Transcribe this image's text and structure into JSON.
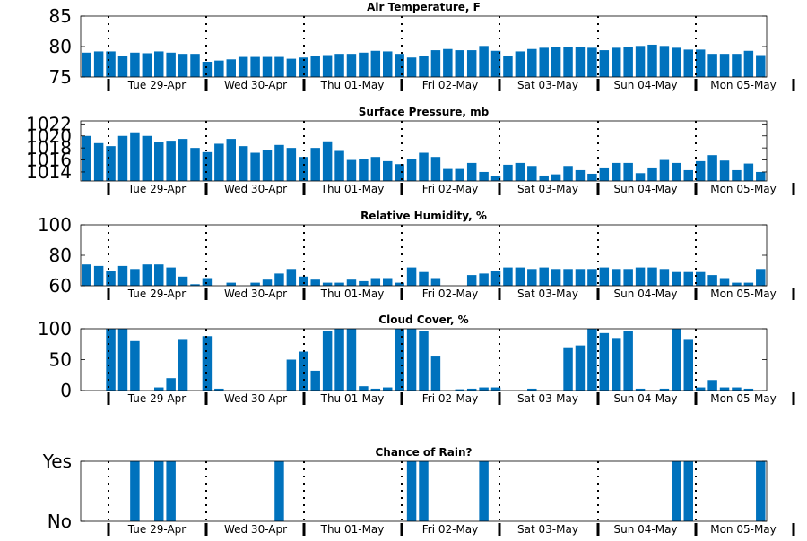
{
  "days": [
    "Tue 29-Apr",
    "Wed 30-Apr",
    "Thu 01-May",
    "Fri 02-May",
    "Sat 03-May",
    "Sun 04-May",
    "Mon 05-May"
  ],
  "colors": {
    "bar": "#0072BD",
    "axis": "#000000"
  },
  "chart_data": [
    {
      "type": "bar",
      "title": "Air Temperature, F",
      "ylim": [
        75,
        85
      ],
      "yticks": [
        "75",
        "80",
        "85"
      ],
      "ytick_values": [
        75,
        80,
        85
      ],
      "values": [
        79.0,
        79.2,
        79.2,
        78.4,
        79.0,
        78.9,
        79.2,
        79.0,
        78.8,
        78.8,
        77.5,
        77.7,
        77.9,
        78.3,
        78.3,
        78.3,
        78.3,
        78.0,
        78.2,
        78.4,
        78.6,
        78.8,
        78.8,
        79.0,
        79.3,
        79.2,
        78.8,
        78.2,
        78.4,
        79.4,
        79.6,
        79.4,
        79.4,
        80.1,
        79.3,
        78.5,
        79.2,
        79.6,
        79.8,
        80.0,
        80.0,
        80.0,
        79.8,
        79.4,
        79.8,
        80.0,
        80.1,
        80.3,
        80.1,
        79.8,
        79.5,
        79.5,
        78.8,
        78.8,
        78.8,
        79.3,
        78.6
      ],
      "grid": false
    },
    {
      "type": "bar",
      "title": "Surface Pressure, mb",
      "ylim": [
        1012.5,
        1022.5
      ],
      "yticks": [
        "1014",
        "1016",
        "1018",
        "1020",
        "1022"
      ],
      "ytick_values": [
        1014,
        1016,
        1018,
        1020,
        1022
      ],
      "values": [
        1020.0,
        1018.8,
        1018.3,
        1020.0,
        1020.6,
        1020.0,
        1019.0,
        1019.2,
        1019.5,
        1018.0,
        1017.3,
        1018.7,
        1019.5,
        1018.3,
        1017.2,
        1017.6,
        1018.5,
        1018.0,
        1016.5,
        1018.0,
        1019.1,
        1017.5,
        1016.0,
        1016.2,
        1016.5,
        1015.8,
        1015.3,
        1016.2,
        1017.2,
        1016.5,
        1014.5,
        1014.5,
        1015.5,
        1014.0,
        1013.3,
        1015.2,
        1015.5,
        1015.0,
        1013.4,
        1013.6,
        1015.0,
        1014.3,
        1013.7,
        1014.6,
        1015.5,
        1015.5,
        1013.8,
        1014.6,
        1016.0,
        1015.5,
        1014.3,
        1015.8,
        1016.8,
        1015.9,
        1014.3,
        1015.4,
        1014.0
      ],
      "grid": false
    },
    {
      "type": "bar",
      "title": "Relative Humidity, %",
      "ylim": [
        60,
        100
      ],
      "yticks": [
        "60",
        "80",
        "100"
      ],
      "ytick_values": [
        60,
        80,
        100
      ],
      "values": [
        74,
        73,
        70,
        73,
        71,
        74,
        74,
        72,
        66,
        61,
        65,
        59,
        62,
        59,
        62,
        64,
        68,
        71,
        66,
        64,
        62,
        62,
        64,
        63,
        65,
        65,
        62,
        72,
        69,
        65,
        59,
        59,
        67,
        68,
        70,
        72,
        72,
        71,
        72,
        71,
        71,
        71,
        71,
        72,
        71,
        71,
        72,
        72,
        71,
        69,
        69,
        69,
        67,
        65,
        62,
        62,
        71
      ],
      "grid": false
    },
    {
      "type": "bar",
      "title": "Cloud Cover, %",
      "ylim": [
        0,
        100
      ],
      "yticks": [
        "0",
        "50",
        "100"
      ],
      "ytick_values": [
        0,
        50,
        100
      ],
      "values": [
        0,
        0,
        100,
        100,
        80,
        0,
        5,
        20,
        82,
        0,
        88,
        3,
        0,
        0,
        0,
        0,
        0,
        50,
        63,
        32,
        97,
        100,
        100,
        7,
        3,
        5,
        100,
        100,
        97,
        55,
        0,
        2,
        3,
        5,
        5,
        0,
        0,
        3,
        0,
        0,
        70,
        73,
        100,
        93,
        85,
        97,
        3,
        0,
        3,
        100,
        82,
        5,
        17,
        5,
        5,
        3,
        0
      ],
      "grid": false
    },
    {
      "type": "bar",
      "title": "Chance of Rain?",
      "ylim": [
        0,
        1
      ],
      "yticks": [
        "No",
        "Yes"
      ],
      "ytick_values": [
        0,
        1
      ],
      "values": [
        0,
        0,
        0,
        0,
        1,
        0,
        1,
        1,
        0,
        0,
        0,
        0,
        0,
        0,
        0,
        0,
        1,
        0,
        0,
        0,
        0,
        0,
        0,
        0,
        0,
        0,
        0,
        1,
        1,
        0,
        0,
        0,
        0,
        1,
        0,
        0,
        0,
        0,
        0,
        0,
        0,
        0,
        0,
        0,
        0,
        0,
        0,
        0,
        0,
        1,
        1,
        0,
        0,
        0,
        0,
        0,
        1
      ],
      "grid": false
    }
  ]
}
